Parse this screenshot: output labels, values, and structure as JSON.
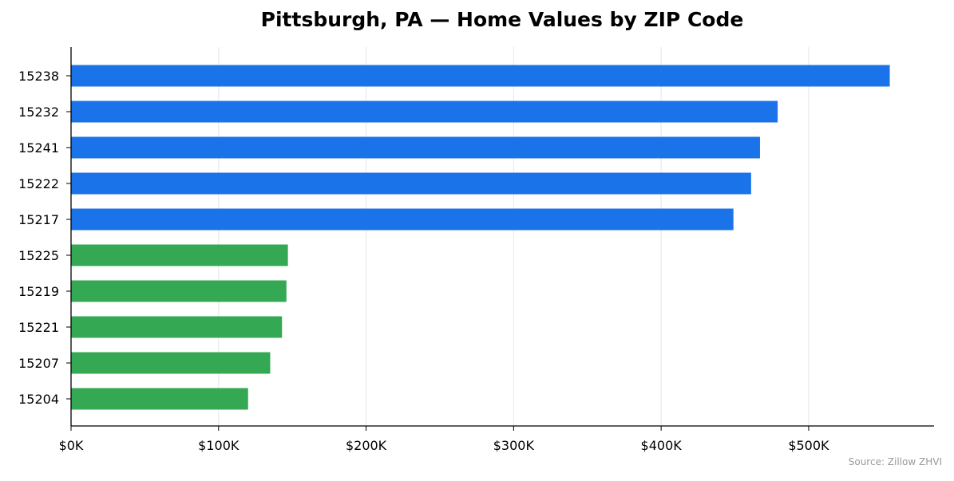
{
  "chart_data": {
    "type": "bar",
    "orientation": "horizontal",
    "title": "Pittsburgh, PA — Home Values by ZIP Code",
    "xlabel": "",
    "ylabel": "",
    "xlim": [
      0,
      585000
    ],
    "x_ticks": [
      0,
      100000,
      200000,
      300000,
      400000,
      500000
    ],
    "x_tick_labels": [
      "$0K",
      "$100K",
      "$200K",
      "$300K",
      "$400K",
      "$500K"
    ],
    "grid": "vertical",
    "categories": [
      "15238",
      "15232",
      "15241",
      "15222",
      "15217",
      "15225",
      "15219",
      "15221",
      "15207",
      "15204"
    ],
    "values": [
      555000,
      479000,
      467000,
      461000,
      449000,
      147000,
      146000,
      143000,
      135000,
      120000
    ],
    "groups": [
      "top",
      "top",
      "top",
      "top",
      "top",
      "bottom",
      "bottom",
      "bottom",
      "bottom",
      "bottom"
    ],
    "colors": {
      "top": "#1a73e8",
      "bottom": "#34a853"
    },
    "source": "Source: Zillow ZHVI"
  }
}
